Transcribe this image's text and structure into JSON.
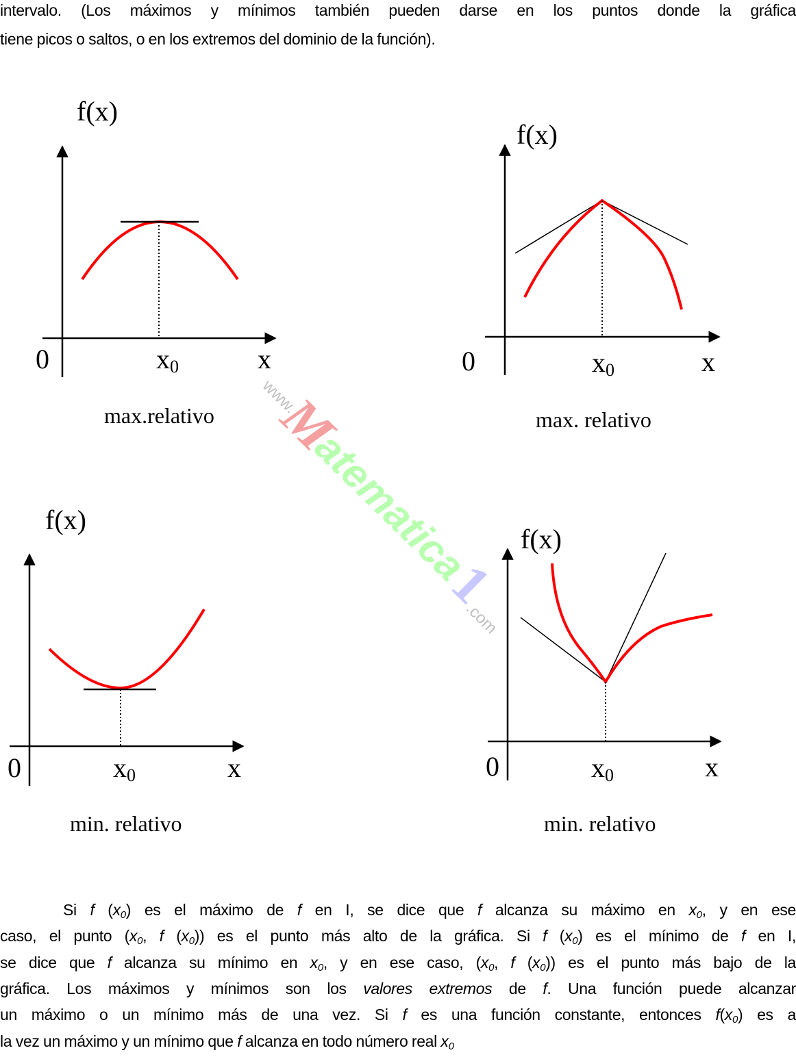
{
  "intro_lines": [
    [
      [
        "intervalo. (Los máximos y mínimos también pueden darse en los puntos donde la gráfica",
        ""
      ]
    ],
    [
      [
        "tiene picos o saltos, o en los extremos del dominio de la función).",
        ""
      ]
    ]
  ],
  "figures": [
    {
      "ylabel": "f(x)",
      "origin": "0",
      "x0": "x",
      "x0_sub": "0",
      "xlabel": "x",
      "caption": "max.relativo"
    },
    {
      "ylabel": "f(x)",
      "origin": "0",
      "x0": "x",
      "x0_sub": "0",
      "xlabel": "x",
      "caption": "max. relativo"
    },
    {
      "ylabel": "f(x)",
      "origin": "0",
      "x0": "x",
      "x0_sub": "0",
      "xlabel": "x",
      "caption": "min. relativo"
    },
    {
      "ylabel": "f(x)",
      "origin": "0",
      "x0": "x",
      "x0_sub": "0",
      "xlabel": "x",
      "caption": "min. relativo"
    }
  ],
  "colors": {
    "curve": "#ff0000",
    "axes": "#000000"
  },
  "watermark": {
    "text": "www.Matematica1.com",
    "colors": [
      "#f4a0a0",
      "#b8ffb0",
      "#c8c8ff",
      "#c0c0c0"
    ]
  },
  "paragraph_lines": [
    [
      [
        "Si ",
        ""
      ],
      [
        "f",
        "i"
      ],
      [
        " (",
        ""
      ],
      [
        "x",
        "i"
      ],
      [
        "0",
        "s"
      ],
      [
        ") es el máximo de ",
        ""
      ],
      [
        "f",
        "i"
      ],
      [
        " en I, se dice que ",
        ""
      ],
      [
        "f",
        "i"
      ],
      [
        " alcanza su máximo en ",
        ""
      ],
      [
        "x",
        "i"
      ],
      [
        "0",
        "s"
      ],
      [
        ", y en ese",
        ""
      ]
    ],
    [
      [
        "caso, el punto (",
        ""
      ],
      [
        "x",
        "i"
      ],
      [
        "0",
        "s"
      ],
      [
        ", ",
        ""
      ],
      [
        "f",
        "i"
      ],
      [
        " (",
        ""
      ],
      [
        "x",
        "i"
      ],
      [
        "0",
        "s"
      ],
      [
        ")) es el punto más alto de la gráfica. Si ",
        ""
      ],
      [
        "f",
        "i"
      ],
      [
        " (",
        ""
      ],
      [
        "x",
        "i"
      ],
      [
        "0",
        "s"
      ],
      [
        ") es el mínimo de ",
        ""
      ],
      [
        "f",
        "i"
      ],
      [
        " en I,",
        ""
      ]
    ],
    [
      [
        "se dice que ",
        ""
      ],
      [
        "f",
        "i"
      ],
      [
        " alcanza su mínimo en ",
        ""
      ],
      [
        "x",
        "i"
      ],
      [
        "0",
        "s"
      ],
      [
        ", y en ese caso, (",
        ""
      ],
      [
        "x",
        "i"
      ],
      [
        "0",
        "s"
      ],
      [
        ", ",
        ""
      ],
      [
        "f",
        "i"
      ],
      [
        " (",
        ""
      ],
      [
        "x",
        "i"
      ],
      [
        "0",
        "s"
      ],
      [
        ")) es el punto más bajo de la",
        ""
      ]
    ],
    [
      [
        "gráfica. Los máximos y mínimos son los ",
        ""
      ],
      [
        "valores extremos",
        "i"
      ],
      [
        " de ",
        ""
      ],
      [
        "f",
        "i"
      ],
      [
        ". Una función puede alcanzar",
        ""
      ]
    ],
    [
      [
        "un máximo o un mínimo más de una vez. Si ",
        ""
      ],
      [
        "f",
        "i"
      ],
      [
        " es una función constante, entonces ",
        ""
      ],
      [
        "f",
        "i"
      ],
      [
        "(",
        ""
      ],
      [
        "x",
        "i"
      ],
      [
        "0",
        "s"
      ],
      [
        ") es a",
        ""
      ]
    ],
    [
      [
        "la vez un máximo y un mínimo que ",
        ""
      ],
      [
        "f",
        "i"
      ],
      [
        " alcanza en todo número real ",
        ""
      ],
      [
        "x",
        "i"
      ],
      [
        "0",
        "s"
      ]
    ]
  ]
}
